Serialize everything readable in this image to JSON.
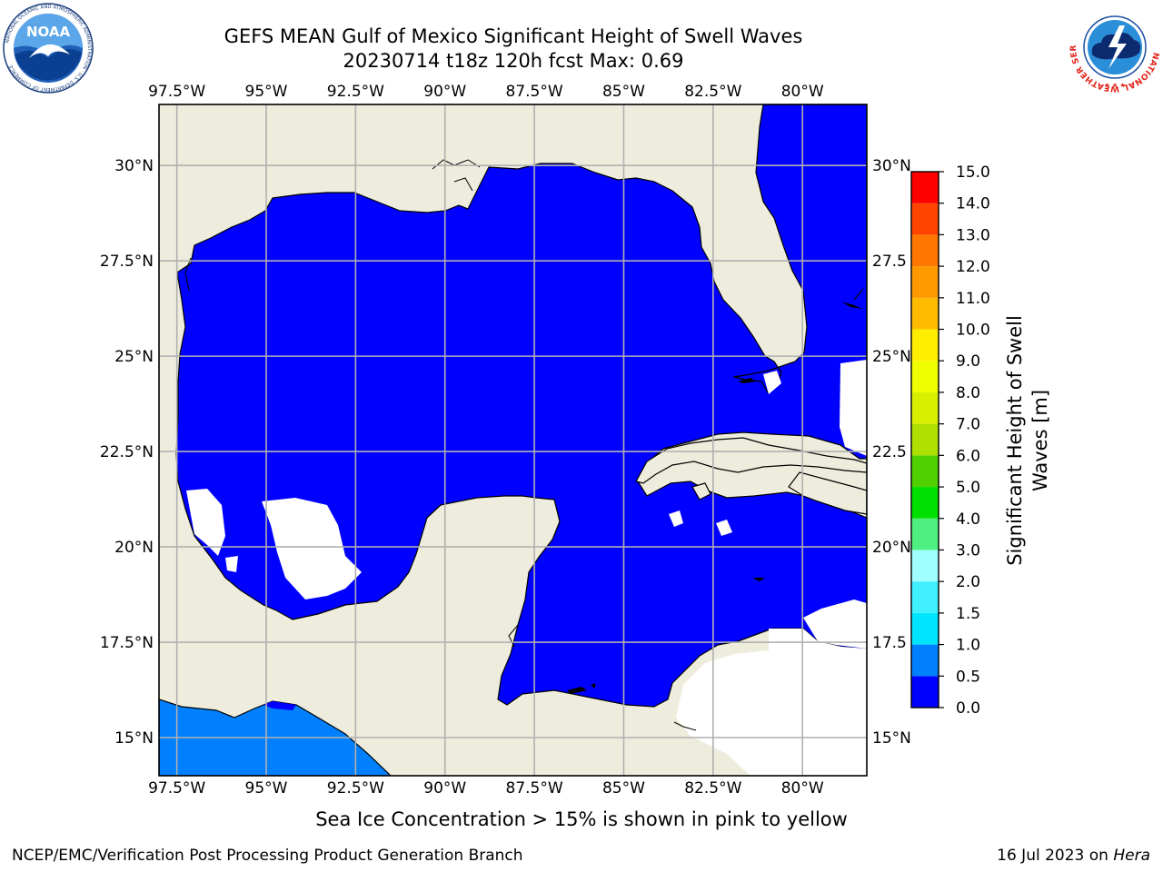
{
  "title": {
    "line1": "GEFS MEAN Gulf of Mexico Significant Height of Swell Waves",
    "line2": "20230714 t18z 120h fcst   Max: 0.69"
  },
  "logos": {
    "left": "NOAA logo",
    "left_text": "NATIONAL OCEANIC AND ATMOSPHERIC ADMINISTRATION · U.S. DEPARTMENT OF COMMERCE",
    "left_badge": "NOAA",
    "right": "National Weather Service logo",
    "right_text": "NATIONAL WEATHER SERVICE"
  },
  "map": {
    "lon_ticks_top": [
      "97.5°W",
      "95°W",
      "92.5°W",
      "90°W",
      "87.5°W",
      "85°W",
      "82.5°W",
      "80°W"
    ],
    "lon_ticks_bottom": [
      "97.5°W",
      "95°W",
      "92.5°W",
      "90°W",
      "87.5°W",
      "85°W",
      "82.5°W",
      "80°W"
    ],
    "lat_ticks_left": [
      "30°N",
      "27.5°N",
      "25°N",
      "22.5°N",
      "20°N",
      "17.5°N",
      "15°N"
    ],
    "lat_ticks_right": [
      "30°N",
      "27.5",
      "25°N",
      "22.5",
      "20°N",
      "17.5",
      "15°N"
    ],
    "lon_values": [
      -97.5,
      -95,
      -92.5,
      -90,
      -87.5,
      -85,
      -82.5,
      -80
    ],
    "lat_values": [
      30,
      27.5,
      25,
      22.5,
      20,
      17.5,
      15
    ],
    "extent": {
      "lon_min": -98,
      "lon_max": -78.2,
      "lat_min": 14,
      "lat_max": 31.6
    },
    "colors": {
      "land": "#eeeddd",
      "ocean_low": "#0000ff",
      "ocean_mid": "#0080ff",
      "no_data": "#ffffff",
      "grid": "#b0b0b0"
    }
  },
  "colorbar": {
    "label": "Significant Height of Swell Waves [m]",
    "label_line1": "Significant Height of Swell",
    "label_line2": "Waves [m]",
    "ticks": [
      "15.0",
      "14.0",
      "13.0",
      "12.0",
      "11.0",
      "10.0",
      "9.0",
      "8.0",
      "7.0",
      "6.0",
      "5.0",
      "4.0",
      "3.0",
      "2.0",
      "1.5",
      "1.0",
      "0.5",
      "0.0"
    ],
    "bins": [
      {
        "range": "0.0-0.5",
        "color": "#0000ff"
      },
      {
        "range": "0.5-1.0",
        "color": "#0080ff"
      },
      {
        "range": "1.0-1.5",
        "color": "#00e5ff"
      },
      {
        "range": "1.5-2.0",
        "color": "#40f0ff"
      },
      {
        "range": "2.0-3.0",
        "color": "#a0ffff"
      },
      {
        "range": "3.0-4.0",
        "color": "#50f080"
      },
      {
        "range": "4.0-5.0",
        "color": "#00e000"
      },
      {
        "range": "5.0-6.0",
        "color": "#50d000"
      },
      {
        "range": "6.0-7.0",
        "color": "#b0e000"
      },
      {
        "range": "7.0-8.0",
        "color": "#d8f000"
      },
      {
        "range": "8.0-9.0",
        "color": "#f0ff00"
      },
      {
        "range": "9.0-10.0",
        "color": "#ffee00"
      },
      {
        "range": "10.0-11.0",
        "color": "#ffbb00"
      },
      {
        "range": "11.0-12.0",
        "color": "#ff9900"
      },
      {
        "range": "12.0-13.0",
        "color": "#ff7700"
      },
      {
        "range": "13.0-14.0",
        "color": "#ff4400"
      },
      {
        "range": "14.0-15.0",
        "color": "#ff0000"
      }
    ]
  },
  "caption": "Sea Ice Concentration > 15% is shown in pink to yellow",
  "footer": {
    "left": "NCEP/EMC/Verification Post Processing Product Generation Branch",
    "right_prefix": "16 Jul 2023 on ",
    "right_host": "Hera"
  }
}
